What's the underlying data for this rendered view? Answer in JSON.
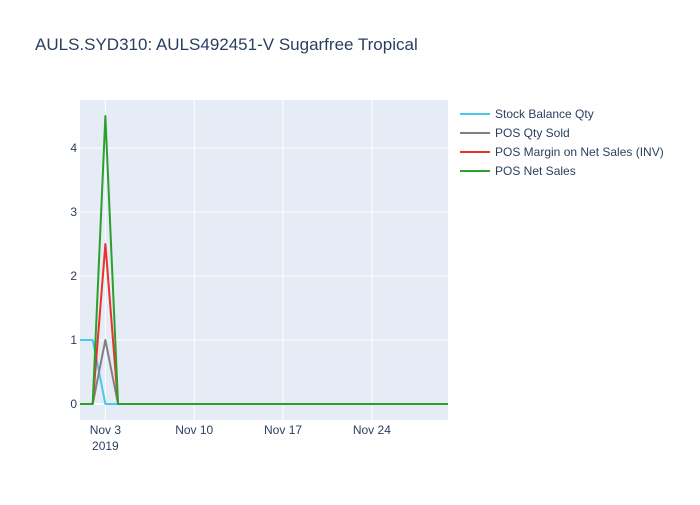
{
  "chart_data": {
    "type": "line",
    "title": "AULS.SYD310:  AULS492451-V Sugarfree Tropical",
    "x_ticks": [
      {
        "date": "2019-11-03",
        "label": "Nov 3",
        "sublabel": "2019"
      },
      {
        "date": "2019-11-10",
        "label": "Nov 10",
        "sublabel": ""
      },
      {
        "date": "2019-11-17",
        "label": "Nov 17",
        "sublabel": ""
      },
      {
        "date": "2019-11-24",
        "label": "Nov 24",
        "sublabel": ""
      }
    ],
    "xlim": [
      "2019-11-01",
      "2019-11-30"
    ],
    "y_ticks": [
      0,
      1,
      2,
      3,
      4
    ],
    "ylim": [
      -0.25,
      4.75
    ],
    "x": [
      "2019-11-01",
      "2019-11-02",
      "2019-11-03",
      "2019-11-04",
      "2019-11-05",
      "2019-11-06",
      "2019-11-07",
      "2019-11-08",
      "2019-11-09",
      "2019-11-10",
      "2019-11-11",
      "2019-11-12",
      "2019-11-13",
      "2019-11-14",
      "2019-11-15",
      "2019-11-16",
      "2019-11-17",
      "2019-11-18",
      "2019-11-19",
      "2019-11-20",
      "2019-11-21",
      "2019-11-22",
      "2019-11-23",
      "2019-11-24",
      "2019-11-25",
      "2019-11-26",
      "2019-11-27",
      "2019-11-28",
      "2019-11-29",
      "2019-11-30"
    ],
    "series": [
      {
        "name": "Stock Balance Qty",
        "color": "#46c8f0",
        "values": [
          1,
          1,
          0,
          0,
          0,
          0,
          0,
          0,
          0,
          0,
          0,
          0,
          0,
          0,
          0,
          0,
          0,
          0,
          0,
          0,
          0,
          0,
          0,
          0,
          0,
          0,
          0,
          0,
          0,
          0
        ]
      },
      {
        "name": "POS Qty Sold",
        "color": "#808080",
        "values": [
          0,
          0,
          1,
          0,
          0,
          0,
          0,
          0,
          0,
          0,
          0,
          0,
          0,
          0,
          0,
          0,
          0,
          0,
          0,
          0,
          0,
          0,
          0,
          0,
          0,
          0,
          0,
          0,
          0,
          0
        ]
      },
      {
        "name": "POS Margin on Net Sales (INV)",
        "color": "#e8322e",
        "values": [
          0,
          0,
          2.5,
          0,
          0,
          0,
          0,
          0,
          0,
          0,
          0,
          0,
          0,
          0,
          0,
          0,
          0,
          0,
          0,
          0,
          0,
          0,
          0,
          0,
          0,
          0,
          0,
          0,
          0,
          0
        ]
      },
      {
        "name": "POS Net Sales",
        "color": "#2ca02c",
        "values": [
          0,
          0,
          4.5,
          0,
          0,
          0,
          0,
          0,
          0,
          0,
          0,
          0,
          0,
          0,
          0,
          0,
          0,
          0,
          0,
          0,
          0,
          0,
          0,
          0,
          0,
          0,
          0,
          0,
          0,
          0
        ]
      }
    ],
    "grid": true,
    "legend_position": "top-right"
  }
}
